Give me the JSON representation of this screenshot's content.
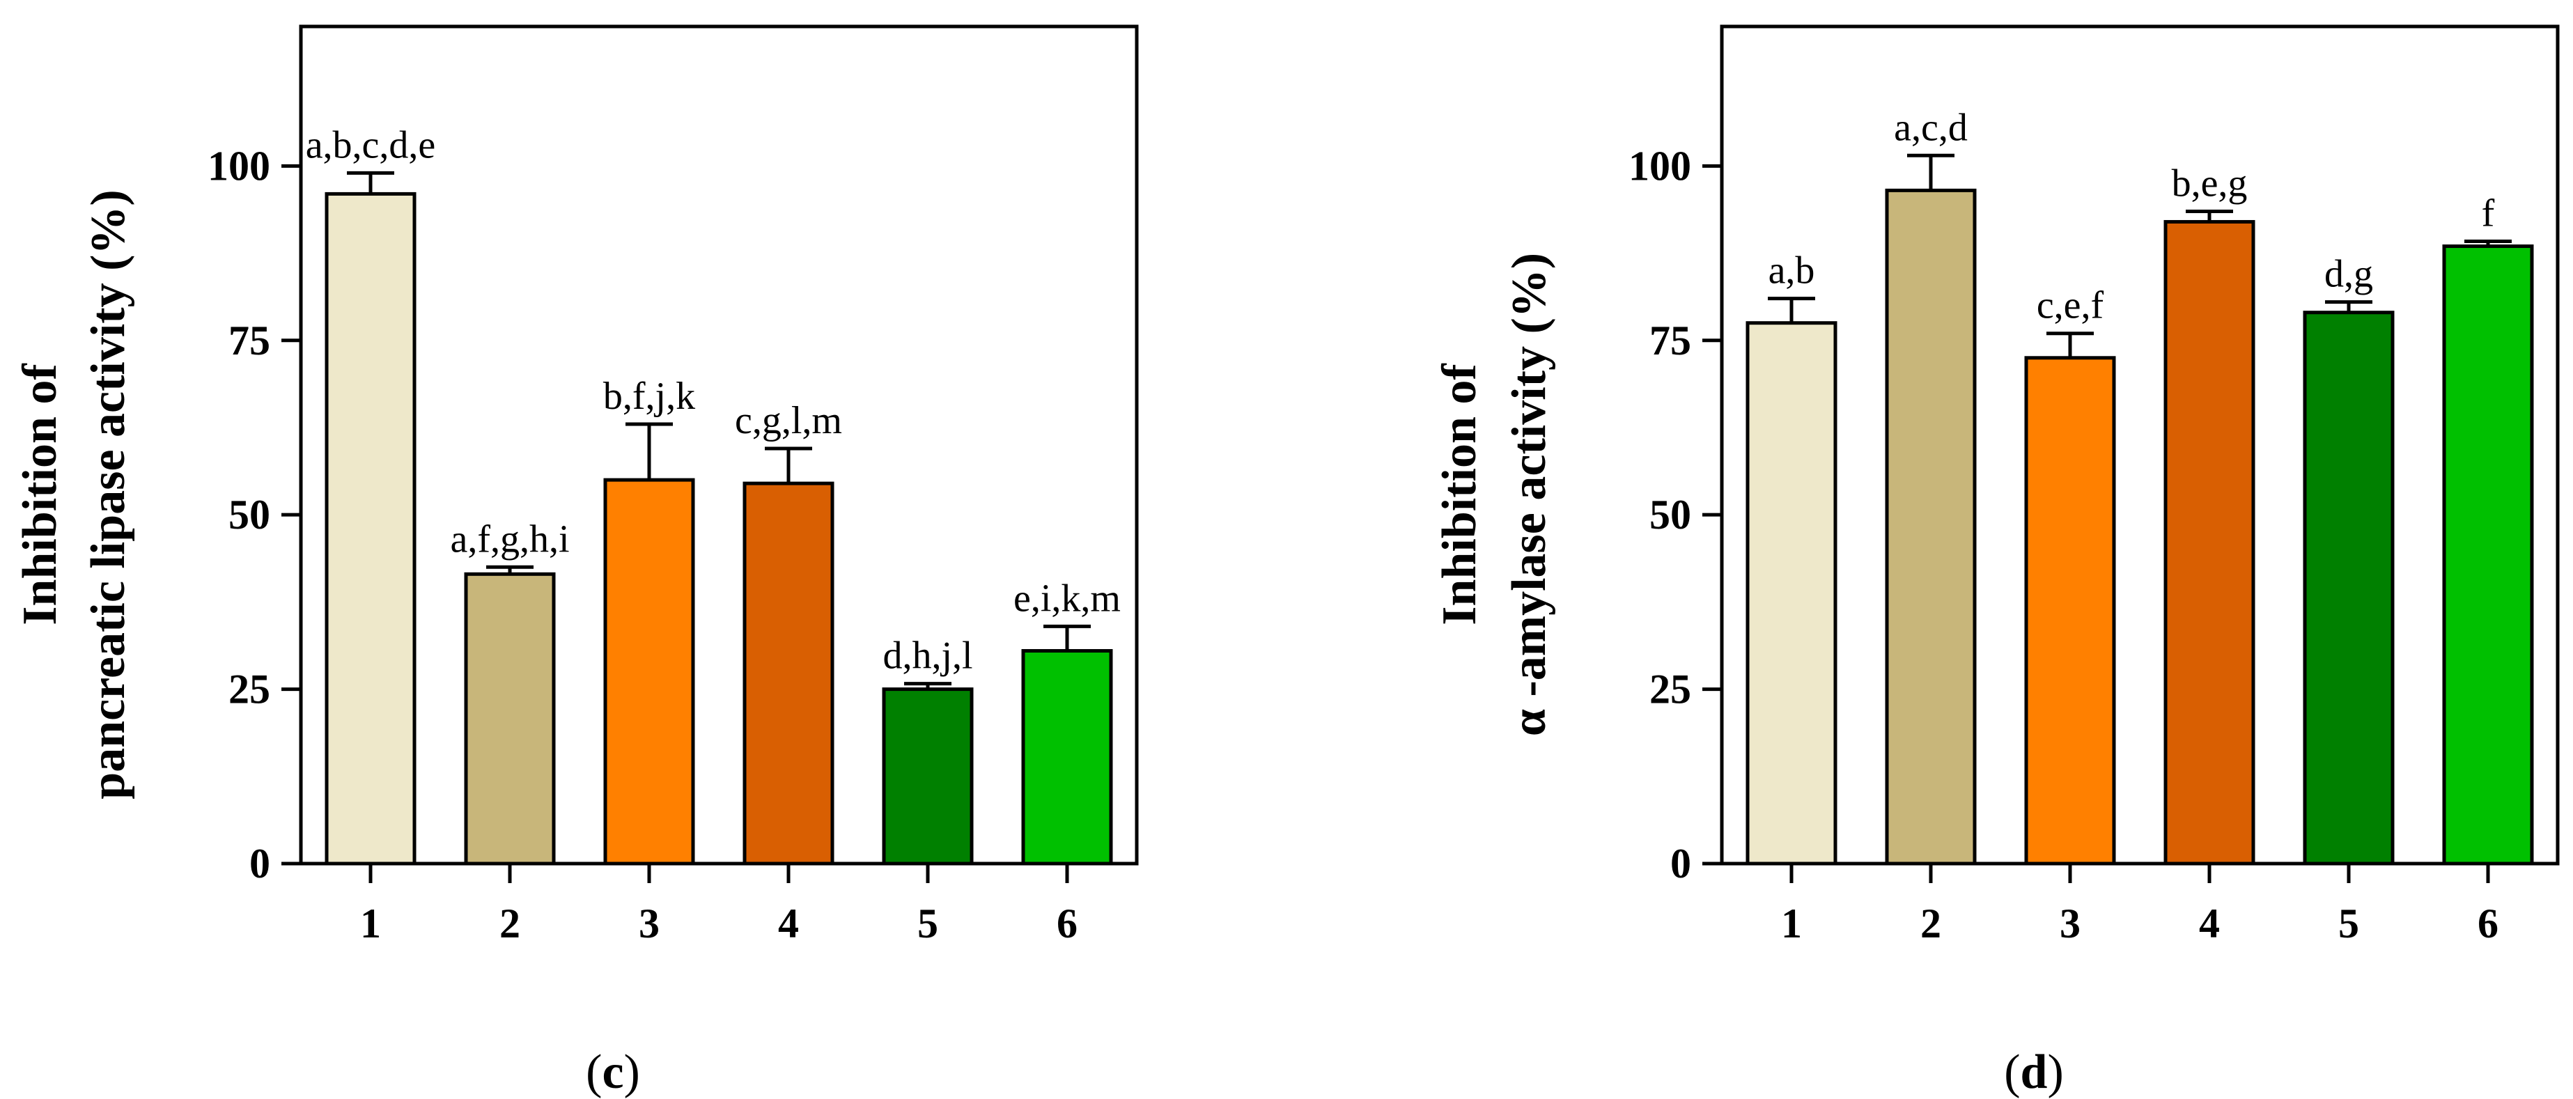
{
  "chart_data": [
    {
      "type": "bar",
      "panel": "c",
      "panel_label_open": "(",
      "panel_label_letter": "c",
      "panel_label_close": ")",
      "ylabel_line1": "Inhibition of",
      "ylabel_line2": "pancreatic lipase activity (%)",
      "ylim": [
        0,
        120
      ],
      "yticks": [
        0,
        25,
        50,
        75,
        100
      ],
      "grid": false,
      "categories": [
        "1",
        "2",
        "3",
        "4",
        "5",
        "6"
      ],
      "values": [
        96,
        41.5,
        55,
        54.5,
        25,
        30.5
      ],
      "errors": [
        3,
        1,
        8,
        5,
        0.8,
        3.5
      ],
      "annotations": [
        "a,b,c,d,e",
        "a,f,g,h,i",
        "b,f,j,k",
        "c,g,l,m",
        "d,h,j,l",
        "e,i,k,m"
      ],
      "colors": [
        "#EEE8CA",
        "#C8B67A",
        "#FF8000",
        "#D95F02",
        "#008000",
        "#00C000"
      ]
    },
    {
      "type": "bar",
      "panel": "d",
      "panel_label_open": "(",
      "panel_label_letter": "d",
      "panel_label_close": ")",
      "ylabel_line1": "Inhibition of",
      "ylabel_line2": "α -amylase activity (%)",
      "ylim": [
        0,
        120
      ],
      "yticks": [
        0,
        25,
        50,
        75,
        100
      ],
      "grid": false,
      "categories": [
        "1",
        "2",
        "3",
        "4",
        "5",
        "6"
      ],
      "values": [
        77.5,
        96.5,
        72.5,
        92,
        79,
        88.5
      ],
      "errors": [
        3.5,
        5,
        3.5,
        1.5,
        1.5,
        0.7
      ],
      "annotations": [
        "a,b",
        "a,c,d",
        "c,e,f",
        "b,e,g",
        "d,g",
        "f"
      ],
      "colors": [
        "#EEE8CA",
        "#C8B67A",
        "#FF8000",
        "#D95F02",
        "#008000",
        "#00C000"
      ]
    }
  ]
}
